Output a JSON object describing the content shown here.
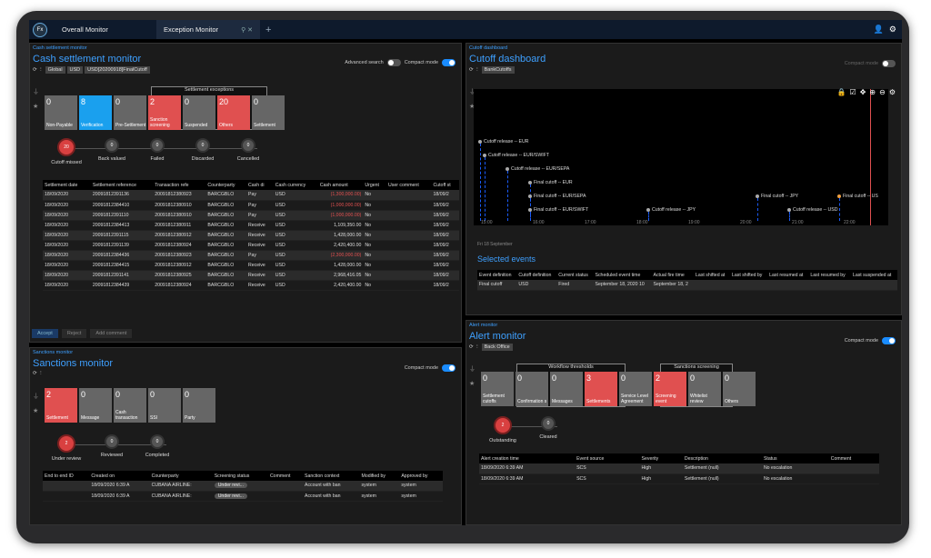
{
  "topbar": {
    "tabs": [
      {
        "label": "Overall Monitor"
      },
      {
        "label": "Exception Monitor"
      }
    ],
    "logo": "Fx"
  },
  "cash": {
    "tag": "Cash settlement monitor",
    "title": "Cash settlement monitor",
    "advanced": "Advanced search",
    "compact": "Compact mode",
    "chips": [
      "Global",
      "USD",
      "USD[20200918]FinalCutoff"
    ],
    "group_title": "Settlement exceptions",
    "tiles": [
      {
        "n": "0",
        "l": "Non-Payable"
      },
      {
        "n": "8",
        "l": "Verification"
      },
      {
        "n": "0",
        "l": "Pre-Settlement"
      },
      {
        "n": "2",
        "l": "Sanction screening"
      },
      {
        "n": "0",
        "l": "Suspended"
      },
      {
        "n": "20",
        "l": "Others"
      },
      {
        "n": "0",
        "l": "Settlement"
      }
    ],
    "steps": [
      {
        "n": "20",
        "l": "Cutoff missed"
      },
      {
        "n": "0",
        "l": "Back valued"
      },
      {
        "n": "0",
        "l": "Failed"
      },
      {
        "n": "0",
        "l": "Discarded"
      },
      {
        "n": "0",
        "l": "Cancelled"
      }
    ],
    "columns": [
      "Settlement date",
      "Settlement reference",
      "Transaction refe",
      "Counterparty",
      "Cash di",
      "Cash currency",
      "Cash amount",
      "Urgent",
      "User comment",
      "Cutoff st"
    ],
    "rows": [
      [
        "18/09/2020",
        "20091812391136",
        "20091812380923",
        "BARCGBLO",
        "Pay",
        "USD",
        "(1,300,000.00)",
        "No",
        "",
        "18/09/2"
      ],
      [
        "18/09/2020",
        "20091812384410",
        "20091812380910",
        "BARCGBLO",
        "Pay",
        "USD",
        "(1,000,000.00)",
        "No",
        "",
        "18/09/2"
      ],
      [
        "18/09/2020",
        "20091812391110",
        "20091812380910",
        "BARCGBLO",
        "Pay",
        "USD",
        "(1,000,000.00)",
        "No",
        "",
        "18/09/2"
      ],
      [
        "18/09/2020",
        "20091812384413",
        "20091812380911",
        "BARCGBLO",
        "Receive",
        "USD",
        "1,109,350.00",
        "No",
        "",
        "18/09/2"
      ],
      [
        "18/09/2020",
        "20091812391115",
        "20091812380912",
        "BARCGBLO",
        "Receive",
        "USD",
        "1,428,000.00",
        "No",
        "",
        "18/09/2"
      ],
      [
        "18/09/2020",
        "20091812391139",
        "20091812380924",
        "BARCGBLO",
        "Receive",
        "USD",
        "2,420,400.00",
        "No",
        "",
        "18/09/2"
      ],
      [
        "18/09/2020",
        "20091812384436",
        "20091812380923",
        "BARCGBLO",
        "Pay",
        "USD",
        "(2,300,000.00)",
        "No",
        "",
        "18/09/2"
      ],
      [
        "18/09/2020",
        "20091812384415",
        "20091812380912",
        "BARCGBLO",
        "Receive",
        "USD",
        "1,428,000.00",
        "No",
        "",
        "18/09/2"
      ],
      [
        "18/09/2020",
        "20091812391141",
        "20091812380925",
        "BARCGBLO",
        "Receive",
        "USD",
        "2,968,416.05",
        "No",
        "",
        "18/09/2"
      ],
      [
        "18/09/2020",
        "20091812384439",
        "20091812380924",
        "BARCGBLO",
        "Receive",
        "USD",
        "2,420,400.00",
        "No",
        "",
        "18/09/2"
      ]
    ],
    "actions": {
      "accept": "Accept",
      "reject": "Reject",
      "comment": "Add comment"
    }
  },
  "sanctions": {
    "tag": "Sanctions monitor",
    "title": "Sanctions monitor",
    "compact": "Compact mode",
    "tiles": [
      {
        "n": "2",
        "l": "Settlement"
      },
      {
        "n": "0",
        "l": "Message"
      },
      {
        "n": "0",
        "l": "Cash transaction"
      },
      {
        "n": "0",
        "l": "SSI"
      },
      {
        "n": "0",
        "l": "Party"
      }
    ],
    "steps": [
      {
        "n": "2",
        "l": "Under review"
      },
      {
        "n": "0",
        "l": "Reviewed"
      },
      {
        "n": "0",
        "l": "Completed"
      }
    ],
    "columns": [
      "End to end ID",
      "Created on",
      "Counterparty",
      "Screening status",
      "Comment",
      "Sanction context",
      "Modified by",
      "Approved by"
    ],
    "rows": [
      [
        "",
        "18/09/2020 6:39 A",
        "CUBANA AIRLINE:",
        "Under revi...",
        "",
        "Account with ban",
        "system",
        "system"
      ],
      [
        "",
        "18/09/2020 6:39 A",
        "CUBANA AIRLINE:",
        "Under revi...",
        "",
        "Account with ban",
        "system",
        "system"
      ]
    ]
  },
  "cutoff": {
    "tag": "Cutoff dashboard",
    "title": "Cutoff dashboard",
    "compact": "Compact mode",
    "chip": "BankCutoffs",
    "events": [
      "Cutoff release -- EUR",
      "Cutoff release -- EUR/SWIFT",
      "Cutoff release -- EUR/SEPA",
      "Final cutoff -- EUR",
      "Final cutoff -- EUR/SEPA",
      "Final cutoff -- EUR/SWIFT",
      "Cutoff release -- JPY",
      "Final cutoff -- JPY",
      "Cutoff release -- USD",
      "Final cutoff -- US"
    ],
    "ticks": [
      "15:00",
      "16:00",
      "17:00",
      "18:00",
      "19:00",
      "20:00",
      "21:00",
      "22:00"
    ],
    "date": "Fri 18 September",
    "selected": "Selected events",
    "columns": [
      "Event definition",
      "Cutoff definition",
      "Current status",
      "Scheduled event time",
      "Actual fire time",
      "Last shifted at",
      "Last shifted by",
      "Last resumed at",
      "Last resumed by",
      "Last suspended at"
    ],
    "rows": [
      [
        "Final cutoff",
        "USD",
        "Fired",
        "September 18, 2020 10",
        "September 18, 2",
        "",
        "",
        "",
        "",
        ""
      ]
    ]
  },
  "alert": {
    "tag": "Alert monitor",
    "title": "Alert monitor",
    "compact": "Compact mode",
    "chip": "Back Office",
    "group1": "Workflow thresholds",
    "group2": "Sanctions screening",
    "tiles": [
      {
        "n": "0",
        "l": "Settlement cutoffs"
      },
      {
        "n": "0",
        "l": "Confirmation s"
      },
      {
        "n": "0",
        "l": "Messages"
      },
      {
        "n": "3",
        "l": "Settlements"
      },
      {
        "n": "0",
        "l": "Service Level Agreement"
      },
      {
        "n": "2",
        "l": "Screening event"
      },
      {
        "n": "0",
        "l": "Whitelist review"
      },
      {
        "n": "0",
        "l": "Others"
      }
    ],
    "steps": [
      {
        "n": "2",
        "l": "Outstanding"
      },
      {
        "n": "0",
        "l": "Cleared"
      }
    ],
    "columns": [
      "Alert creation time",
      "Event source",
      "Severity",
      "Description",
      "Status",
      "Comment"
    ],
    "rows": [
      [
        "18/09/2020 6:39 AM",
        "SCS",
        "High",
        "Settlement (null)",
        "No escalation",
        ""
      ],
      [
        "18/09/2020 6:39 AM",
        "SCS",
        "High",
        "Settlement (null)",
        "No escalation",
        ""
      ]
    ]
  }
}
